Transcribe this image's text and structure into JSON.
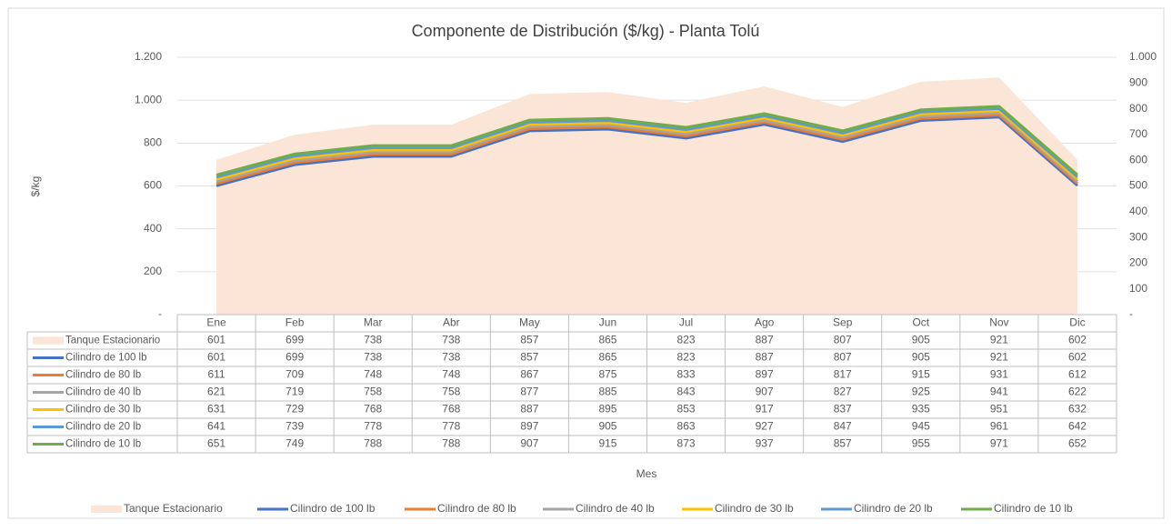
{
  "chart_data": {
    "type": "line",
    "title": "Componente de Distribución ($/kg) - Planta Tolú",
    "ylabel": "$/kg",
    "xlabel": "Mes",
    "categories": [
      "Ene",
      "Feb",
      "Mar",
      "Abr",
      "May",
      "Jun",
      "Jul",
      "Ago",
      "Sep",
      "Oct",
      "Nov",
      "Dic"
    ],
    "ylim": [
      0,
      1200
    ],
    "yticks": [
      {
        "value": 0,
        "label": "-"
      },
      200,
      400,
      600,
      800,
      {
        "value": 1000,
        "label": "1.000"
      },
      {
        "value": 1200,
        "label": "1.200"
      }
    ],
    "y2lim": [
      0,
      1000
    ],
    "y2ticks": [
      {
        "value": 0,
        "label": "-"
      },
      100,
      200,
      300,
      400,
      500,
      600,
      700,
      800,
      900,
      {
        "value": 1000,
        "label": "1.000"
      }
    ],
    "grid": true,
    "legend": "bottom",
    "series": [
      {
        "name": "Tanque  Estacionario",
        "kind": "area",
        "axis": "y2",
        "color": "#fbe5d6",
        "values": [
          601,
          699,
          738,
          738,
          857,
          865,
          823,
          887,
          807,
          905,
          921,
          602
        ]
      },
      {
        "name": "Cilindro de 100 lb",
        "color": "#4472c4",
        "values": [
          601,
          699,
          738,
          738,
          857,
          865,
          823,
          887,
          807,
          905,
          921,
          602
        ]
      },
      {
        "name": "Cilindro de 80 lb",
        "color": "#ed7d31",
        "values": [
          611,
          709,
          748,
          748,
          867,
          875,
          833,
          897,
          817,
          915,
          931,
          612
        ]
      },
      {
        "name": "Cilindro de 40 lb",
        "color": "#a5a5a5",
        "values": [
          621,
          719,
          758,
          758,
          877,
          885,
          843,
          907,
          827,
          925,
          941,
          622
        ]
      },
      {
        "name": "Cilindro de 30 lb",
        "color": "#ffc000",
        "values": [
          631,
          729,
          768,
          768,
          887,
          895,
          853,
          917,
          837,
          935,
          951,
          632
        ]
      },
      {
        "name": "Cilindro de 20 lb",
        "color": "#5b9bd5",
        "values": [
          641,
          739,
          778,
          778,
          897,
          905,
          863,
          927,
          847,
          945,
          961,
          642
        ]
      },
      {
        "name": "Cilindro de 10 lb",
        "color": "#70ad47",
        "values": [
          651,
          749,
          788,
          788,
          907,
          915,
          873,
          937,
          857,
          955,
          971,
          652
        ]
      }
    ]
  }
}
